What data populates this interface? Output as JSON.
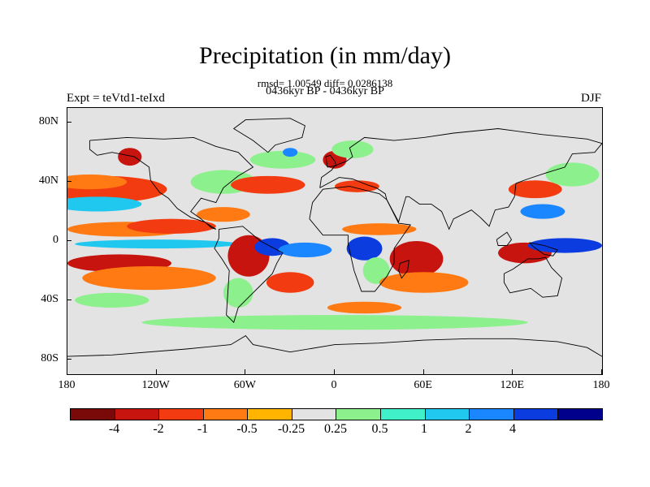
{
  "title": "Precipitation (in mm/day)",
  "stats": "rmsd= 1.00549 diff= 0.0286138",
  "period": "0436kyr BP - 0436kyr BP",
  "experiment": "Expt = teVtd1-teIxd",
  "season": "DJF",
  "map": {
    "background": "#e3e3e3",
    "lat_labels": [
      "80N",
      "40N",
      "0",
      "40S",
      "80S"
    ],
    "lon_labels": [
      "180",
      "120W",
      "60W",
      "0",
      "60E",
      "120E",
      "180"
    ]
  },
  "colorbar": {
    "colors": [
      "#7a0a0a",
      "#c8140e",
      "#f23b10",
      "#ff7a12",
      "#ffb400",
      "#e3e3e3",
      "#8cf08c",
      "#3ff0c8",
      "#20c8f0",
      "#1a86ff",
      "#0a3ce0",
      "#00008c"
    ],
    "labels": [
      "-4",
      "-2",
      "-1",
      "-0.5",
      "-0.25",
      "0.25",
      "0.5",
      "1",
      "2",
      "4"
    ]
  },
  "regions": [
    {
      "name": "n-pacific-red",
      "lon": -155,
      "lat": 35,
      "rx": 42,
      "ry": 9,
      "color": "#f23b10"
    },
    {
      "name": "n-pacific-orange",
      "lon": -165,
      "lat": 40,
      "rx": 25,
      "ry": 5,
      "color": "#ff7a12"
    },
    {
      "name": "n-pacific-blue",
      "lon": -160,
      "lat": 25,
      "rx": 30,
      "ry": 5,
      "color": "#20c8f0"
    },
    {
      "name": "e-pacific-orange",
      "lon": -140,
      "lat": 8,
      "rx": 40,
      "ry": 5,
      "color": "#ff7a12"
    },
    {
      "name": "e-pacific-red",
      "lon": -110,
      "lat": 10,
      "rx": 30,
      "ry": 5,
      "color": "#f23b10"
    },
    {
      "name": "eq-pacific-blue",
      "lon": -120,
      "lat": -2,
      "rx": 55,
      "ry": 3,
      "color": "#20c8f0"
    },
    {
      "name": "s-pacific-red",
      "lon": -145,
      "lat": -15,
      "rx": 35,
      "ry": 6,
      "color": "#c8140e"
    },
    {
      "name": "s-pacific-orange",
      "lon": -125,
      "lat": -25,
      "rx": 45,
      "ry": 8,
      "color": "#ff7a12"
    },
    {
      "name": "s-pacific-green",
      "lon": -150,
      "lat": -40,
      "rx": 25,
      "ry": 5,
      "color": "#8cf08c"
    },
    {
      "name": "alaska-red",
      "lon": -138,
      "lat": 57,
      "rx": 8,
      "ry": 6,
      "color": "#c8140e"
    },
    {
      "name": "n-america-green",
      "lon": -75,
      "lat": 40,
      "rx": 22,
      "ry": 8,
      "color": "#8cf08c"
    },
    {
      "name": "n-atlantic-red",
      "lon": -45,
      "lat": 38,
      "rx": 25,
      "ry": 6,
      "color": "#f23b10"
    },
    {
      "name": "n-atlantic-green",
      "lon": -35,
      "lat": 55,
      "rx": 22,
      "ry": 6,
      "color": "#8cf08c"
    },
    {
      "name": "n-atlantic-blue",
      "lon": -30,
      "lat": 60,
      "rx": 5,
      "ry": 3,
      "color": "#1a86ff"
    },
    {
      "name": "caribbean-orange",
      "lon": -75,
      "lat": 18,
      "rx": 18,
      "ry": 5,
      "color": "#ff7a12"
    },
    {
      "name": "amazon-red",
      "lon": -58,
      "lat": -10,
      "rx": 14,
      "ry": 14,
      "color": "#c8140e"
    },
    {
      "name": "brazil-blue",
      "lon": -42,
      "lat": -4,
      "rx": 12,
      "ry": 6,
      "color": "#0a3ce0"
    },
    {
      "name": "s-atlantic-blue",
      "lon": -20,
      "lat": -6,
      "rx": 18,
      "ry": 5,
      "color": "#1a86ff"
    },
    {
      "name": "s-atlantic-red",
      "lon": -30,
      "lat": -28,
      "rx": 16,
      "ry": 7,
      "color": "#f23b10"
    },
    {
      "name": "s-america-green",
      "lon": -65,
      "lat": -35,
      "rx": 10,
      "ry": 10,
      "color": "#8cf08c"
    },
    {
      "name": "europe-red",
      "lon": 0,
      "lat": 55,
      "rx": 8,
      "ry": 6,
      "color": "#c8140e"
    },
    {
      "name": "europe-green",
      "lon": 12,
      "lat": 62,
      "rx": 14,
      "ry": 6,
      "color": "#8cf08c"
    },
    {
      "name": "mediterranean-red",
      "lon": 15,
      "lat": 37,
      "rx": 15,
      "ry": 4,
      "color": "#f23b10"
    },
    {
      "name": "africa-eq-orange",
      "lon": 30,
      "lat": 8,
      "rx": 25,
      "ry": 4,
      "color": "#ff7a12"
    },
    {
      "name": "africa-blue",
      "lon": 20,
      "lat": -5,
      "rx": 12,
      "ry": 8,
      "color": "#0a3ce0"
    },
    {
      "name": "s-africa-green",
      "lon": 28,
      "lat": -20,
      "rx": 9,
      "ry": 9,
      "color": "#8cf08c"
    },
    {
      "name": "indian-ocean-red",
      "lon": 55,
      "lat": -12,
      "rx": 18,
      "ry": 12,
      "color": "#c8140e"
    },
    {
      "name": "indian-ocean-orange",
      "lon": 60,
      "lat": -28,
      "rx": 30,
      "ry": 7,
      "color": "#ff7a12"
    },
    {
      "name": "w-pacific-red",
      "lon": 128,
      "lat": -8,
      "rx": 18,
      "ry": 7,
      "color": "#c8140e"
    },
    {
      "name": "w-pacific-blue",
      "lon": 155,
      "lat": -3,
      "rx": 25,
      "ry": 5,
      "color": "#0a3ce0"
    },
    {
      "name": "japan-red",
      "lon": 135,
      "lat": 35,
      "rx": 18,
      "ry": 6,
      "color": "#f23b10"
    },
    {
      "name": "nw-pacific-green",
      "lon": 160,
      "lat": 45,
      "rx": 18,
      "ry": 8,
      "color": "#8cf08c"
    },
    {
      "name": "asia-blue",
      "lon": 140,
      "lat": 20,
      "rx": 15,
      "ry": 5,
      "color": "#1a86ff"
    },
    {
      "name": "s-ocean-green",
      "lon": 0,
      "lat": -55,
      "rx": 130,
      "ry": 5,
      "color": "#8cf08c"
    },
    {
      "name": "s-ocean-orange",
      "lon": 20,
      "lat": -45,
      "rx": 25,
      "ry": 4,
      "color": "#ff7a12"
    }
  ],
  "coastlines": [
    {
      "name": "north-america",
      "pts": [
        [
          -165,
          68
        ],
        [
          -140,
          70
        ],
        [
          -115,
          69
        ],
        [
          -95,
          70
        ],
        [
          -80,
          64
        ],
        [
          -65,
          60
        ],
        [
          -55,
          50
        ],
        [
          -65,
          44
        ],
        [
          -75,
          36
        ],
        [
          -80,
          26
        ],
        [
          -90,
          29
        ],
        [
          -97,
          20
        ],
        [
          -90,
          15
        ],
        [
          -83,
          9
        ],
        [
          -80,
          8
        ],
        [
          -88,
          13
        ],
        [
          -97,
          16
        ],
        [
          -106,
          22
        ],
        [
          -112,
          29
        ],
        [
          -118,
          33
        ],
        [
          -124,
          41
        ],
        [
          -125,
          50
        ],
        [
          -135,
          57
        ],
        [
          -150,
          60
        ],
        [
          -160,
          58
        ],
        [
          -165,
          62
        ],
        [
          -165,
          68
        ]
      ]
    },
    {
      "name": "south-america",
      "pts": [
        [
          -78,
          8
        ],
        [
          -62,
          10
        ],
        [
          -50,
          0
        ],
        [
          -35,
          -8
        ],
        [
          -39,
          -15
        ],
        [
          -42,
          -22
        ],
        [
          -48,
          -28
        ],
        [
          -58,
          -38
        ],
        [
          -65,
          -45
        ],
        [
          -68,
          -55
        ],
        [
          -73,
          -50
        ],
        [
          -72,
          -35
        ],
        [
          -71,
          -20
        ],
        [
          -76,
          -12
        ],
        [
          -81,
          -5
        ],
        [
          -78,
          2
        ],
        [
          -78,
          8
        ]
      ]
    },
    {
      "name": "africa",
      "pts": [
        [
          -17,
          15
        ],
        [
          -15,
          26
        ],
        [
          -8,
          35
        ],
        [
          10,
          37
        ],
        [
          30,
          32
        ],
        [
          35,
          28
        ],
        [
          43,
          12
        ],
        [
          51,
          11
        ],
        [
          40,
          -5
        ],
        [
          40,
          -15
        ],
        [
          35,
          -24
        ],
        [
          27,
          -34
        ],
        [
          18,
          -34
        ],
        [
          13,
          -20
        ],
        [
          9,
          -2
        ],
        [
          9,
          4
        ],
        [
          -8,
          4
        ],
        [
          -17,
          15
        ]
      ]
    },
    {
      "name": "eurasia",
      "pts": [
        [
          -10,
          36
        ],
        [
          -9,
          43
        ],
        [
          -2,
          48
        ],
        [
          0,
          51
        ],
        [
          8,
          54
        ],
        [
          12,
          57
        ],
        [
          10,
          63
        ],
        [
          20,
          70
        ],
        [
          40,
          68
        ],
        [
          60,
          70
        ],
        [
          80,
          73
        ],
        [
          110,
          76
        ],
        [
          140,
          72
        ],
        [
          170,
          69
        ],
        [
          180,
          66
        ],
        [
          175,
          60
        ],
        [
          160,
          59
        ],
        [
          155,
          50
        ],
        [
          142,
          46
        ],
        [
          130,
          42
        ],
        [
          122,
          39
        ],
        [
          121,
          30
        ],
        [
          117,
          23
        ],
        [
          108,
          21
        ],
        [
          104,
          10
        ],
        [
          100,
          14
        ],
        [
          98,
          16
        ],
        [
          92,
          21
        ],
        [
          80,
          15
        ],
        [
          77,
          8
        ],
        [
          72,
          20
        ],
        [
          65,
          25
        ],
        [
          57,
          25
        ],
        [
          50,
          30
        ],
        [
          48,
          30
        ],
        [
          43,
          13
        ],
        [
          35,
          28
        ],
        [
          34,
          32
        ],
        [
          28,
          36
        ],
        [
          22,
          38
        ],
        [
          12,
          42
        ],
        [
          3,
          43
        ],
        [
          -10,
          36
        ]
      ]
    },
    {
      "name": "australia",
      "pts": [
        [
          114,
          -22
        ],
        [
          120,
          -19
        ],
        [
          130,
          -12
        ],
        [
          137,
          -12
        ],
        [
          142,
          -11
        ],
        [
          146,
          -18
        ],
        [
          153,
          -25
        ],
        [
          150,
          -37
        ],
        [
          140,
          -38
        ],
        [
          132,
          -32
        ],
        [
          118,
          -35
        ],
        [
          114,
          -28
        ],
        [
          114,
          -22
        ]
      ]
    },
    {
      "name": "greenland",
      "pts": [
        [
          -45,
          60
        ],
        [
          -40,
          65
        ],
        [
          -22,
          70
        ],
        [
          -20,
          78
        ],
        [
          -30,
          83
        ],
        [
          -60,
          82
        ],
        [
          -68,
          76
        ],
        [
          -55,
          68
        ],
        [
          -45,
          60
        ]
      ]
    },
    {
      "name": "antarctica",
      "pts": [
        [
          -180,
          -78
        ],
        [
          -150,
          -77
        ],
        [
          -100,
          -73
        ],
        [
          -70,
          -70
        ],
        [
          -60,
          -64
        ],
        [
          -55,
          -70
        ],
        [
          -30,
          -75
        ],
        [
          0,
          -70
        ],
        [
          30,
          -69
        ],
        [
          60,
          -67
        ],
        [
          90,
          -66
        ],
        [
          120,
          -66
        ],
        [
          150,
          -68
        ],
        [
          170,
          -72
        ],
        [
          180,
          -78
        ]
      ]
    },
    {
      "name": "madagascar",
      "pts": [
        [
          44,
          -15
        ],
        [
          50,
          -13
        ],
        [
          49,
          -20
        ],
        [
          45,
          -25
        ],
        [
          43,
          -20
        ],
        [
          44,
          -15
        ]
      ]
    },
    {
      "name": "borneo",
      "pts": [
        [
          109,
          1
        ],
        [
          116,
          6
        ],
        [
          119,
          1
        ],
        [
          116,
          -3
        ],
        [
          110,
          -3
        ],
        [
          109,
          1
        ]
      ]
    },
    {
      "name": "new-guinea",
      "pts": [
        [
          131,
          -1
        ],
        [
          141,
          -3
        ],
        [
          150,
          -6
        ],
        [
          147,
          -10
        ],
        [
          141,
          -9
        ],
        [
          134,
          -4
        ],
        [
          131,
          -1
        ]
      ]
    },
    {
      "name": "uk",
      "pts": [
        [
          -5,
          50
        ],
        [
          1,
          51
        ],
        [
          0,
          54
        ],
        [
          -3,
          58
        ],
        [
          -6,
          57
        ],
        [
          -5,
          50
        ]
      ]
    }
  ]
}
